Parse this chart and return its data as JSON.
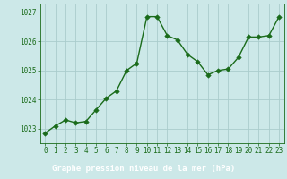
{
  "x": [
    0,
    1,
    2,
    3,
    4,
    5,
    6,
    7,
    8,
    9,
    10,
    11,
    12,
    13,
    14,
    15,
    16,
    17,
    18,
    19,
    20,
    21,
    22,
    23
  ],
  "y": [
    1022.85,
    1023.1,
    1023.3,
    1023.2,
    1023.25,
    1023.65,
    1024.05,
    1024.3,
    1025.0,
    1025.25,
    1026.85,
    1026.85,
    1026.2,
    1026.05,
    1025.55,
    1025.3,
    1024.85,
    1025.0,
    1025.05,
    1025.45,
    1026.15,
    1026.15,
    1026.2,
    1026.85
  ],
  "line_color": "#1a6b1a",
  "marker_color": "#1a6b1a",
  "bg_color": "#cce8e8",
  "grid_color": "#aacccc",
  "xlabel": "Graphe pression niveau de la mer (hPa)",
  "xlabel_color": "#1a6b1a",
  "tick_color": "#1a6b1a",
  "ylim": [
    1022.5,
    1027.3
  ],
  "yticks": [
    1023,
    1024,
    1025,
    1026,
    1027
  ],
  "xticks": [
    0,
    1,
    2,
    3,
    4,
    5,
    6,
    7,
    8,
    9,
    10,
    11,
    12,
    13,
    14,
    15,
    16,
    17,
    18,
    19,
    20,
    21,
    22,
    23
  ],
  "xlabel_fontsize": 6.5,
  "tick_fontsize": 5.5,
  "line_width": 1.0,
  "marker_size": 2.8,
  "bottom_bar_color": "#2d6b2d",
  "bottom_bar_text_color": "#ffffff",
  "spine_color": "#1a6b1a"
}
